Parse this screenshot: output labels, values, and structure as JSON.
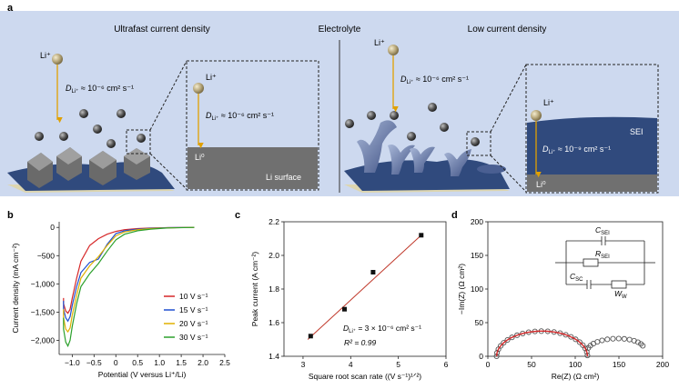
{
  "panel_a": {
    "letter": "a",
    "left_title": "Ultrafast current density",
    "center_title": "Electrolyte",
    "right_title": "Low current density",
    "li_ion": "Li⁺",
    "li_metal": "Li⁰",
    "li_surface": "Li surface",
    "sei": "SEI",
    "diffusion_fast_left": "D",
    "diffusion_sub": "Li⁺",
    "diffusion_fast_value": " ≈ 10⁻⁶ cm² s⁻¹",
    "diffusion_slow_value": " ≈ 10⁻⁹ cm² s⁻¹"
  },
  "chart_data": [
    {
      "panel": "b",
      "type": "line",
      "xlabel": "Potential (V versus Li⁺/Li)",
      "ylabel": "Current density (mA cm⁻²)",
      "xlim": [
        -1.3,
        2.5
      ],
      "ylim": [
        -2250,
        100
      ],
      "xticks": [
        "−1.0",
        "−0.5",
        "0",
        "0.5",
        "1.0",
        "1.5",
        "2.0",
        "2.5"
      ],
      "xtick_values": [
        -1.0,
        -0.5,
        0,
        0.5,
        1.0,
        1.5,
        2.0,
        2.5
      ],
      "yticks": [
        "0",
        "−500",
        "−1,000",
        "−1,500",
        "−2,000"
      ],
      "ytick_values": [
        0,
        -500,
        -1000,
        -1500,
        -2000
      ],
      "series": [
        {
          "name": "10 V s⁻¹",
          "color": "#d62728",
          "x": [
            1.8,
            1.2,
            0.8,
            0.5,
            0.2,
            0.0,
            -0.2,
            -0.4,
            -0.6,
            -0.8,
            -0.9,
            -1.0,
            -1.05,
            -1.1,
            -1.15,
            -1.2,
            -1.2
          ],
          "y": [
            0,
            -5,
            -10,
            -20,
            -40,
            -70,
            -120,
            -200,
            -320,
            -600,
            -900,
            -1250,
            -1450,
            -1520,
            -1480,
            -1350,
            -1250
          ]
        },
        {
          "name": "15 V s⁻¹",
          "color": "#1f4fd1",
          "x": [
            1.8,
            1.2,
            0.8,
            0.5,
            0.2,
            0.0,
            -0.2,
            -0.4,
            -0.6,
            -0.8,
            -0.9,
            -1.0,
            -1.05,
            -1.1,
            -1.15,
            -1.2,
            -1.2
          ],
          "y": [
            0,
            -5,
            -15,
            -30,
            -60,
            -110,
            -300,
            -560,
            -620,
            -800,
            -1050,
            -1380,
            -1580,
            -1660,
            -1600,
            -1450,
            -1300
          ]
        },
        {
          "name": "20 V s⁻¹",
          "color": "#e0b000",
          "x": [
            1.8,
            1.2,
            0.8,
            0.5,
            0.2,
            0.0,
            -0.2,
            -0.4,
            -0.6,
            -0.8,
            -0.9,
            -1.0,
            -1.05,
            -1.1,
            -1.15,
            -1.2,
            -1.2
          ],
          "y": [
            0,
            -8,
            -20,
            -40,
            -80,
            -150,
            -320,
            -520,
            -680,
            -900,
            -1200,
            -1550,
            -1780,
            -1850,
            -1800,
            -1600,
            -1450
          ]
        },
        {
          "name": "30 V s⁻¹",
          "color": "#2ca02c",
          "x": [
            1.8,
            1.2,
            0.8,
            0.5,
            0.2,
            0.0,
            -0.2,
            -0.4,
            -0.6,
            -0.8,
            -0.9,
            -1.0,
            -1.05,
            -1.1,
            -1.15,
            -1.2,
            -1.2
          ],
          "y": [
            0,
            -10,
            -30,
            -60,
            -120,
            -220,
            -420,
            -640,
            -820,
            -1050,
            -1350,
            -1750,
            -2000,
            -2100,
            -2030,
            -1800,
            -1600
          ]
        }
      ]
    },
    {
      "panel": "c",
      "type": "scatter",
      "xlabel": "Square root scan rate ((V s⁻¹)¹ᐟ²)",
      "ylabel": "Peak current (A cm⁻²)",
      "xlim": [
        2.6,
        6.0
      ],
      "ylim": [
        1.4,
        2.2
      ],
      "xticks": [
        "3",
        "4",
        "5",
        "6"
      ],
      "xtick_values": [
        3,
        4,
        5,
        6
      ],
      "yticks": [
        "1.4",
        "1.6",
        "1.8",
        "2.0",
        "2.2"
      ],
      "ytick_values": [
        1.4,
        1.6,
        1.8,
        2.0,
        2.2
      ],
      "x": [
        3.16,
        3.87,
        4.47,
        5.48
      ],
      "y": [
        1.52,
        1.68,
        1.9,
        2.12
      ],
      "fit_x": [
        3.1,
        5.48
      ],
      "fit_y": [
        1.5,
        2.12
      ],
      "fit_color": "#c0392b",
      "annotation_d": "D",
      "annotation_d_sub": "Li⁺",
      "annotation_d_value": " = 3 × 10⁻⁶ cm² s⁻¹",
      "annotation_r2": "R² = 0.99"
    },
    {
      "panel": "d",
      "type": "scatter",
      "xlabel": "Re(Z) (Ω cm²)",
      "ylabel": "−Im(Z) (Ω cm²)",
      "xlim": [
        0,
        200
      ],
      "ylim": [
        0,
        200
      ],
      "xticks": [
        "0",
        "50",
        "100",
        "150",
        "200"
      ],
      "xtick_values": [
        0,
        50,
        100,
        150,
        200
      ],
      "yticks": [
        "0",
        "50",
        "100",
        "150",
        "200"
      ],
      "ytick_values": [
        0,
        50,
        100,
        150,
        200
      ],
      "marker_color": "#555555",
      "fit_color": "#d62728",
      "circuit": {
        "c_sei": "C",
        "c_sei_sub": "SEI",
        "r_sei": "R",
        "r_sei_sub": "SEI",
        "c_sc": "C",
        "c_sc_sub": "SC",
        "w": "W",
        "w_sub": "W"
      }
    }
  ],
  "panel_letters": [
    "b",
    "c",
    "d"
  ]
}
